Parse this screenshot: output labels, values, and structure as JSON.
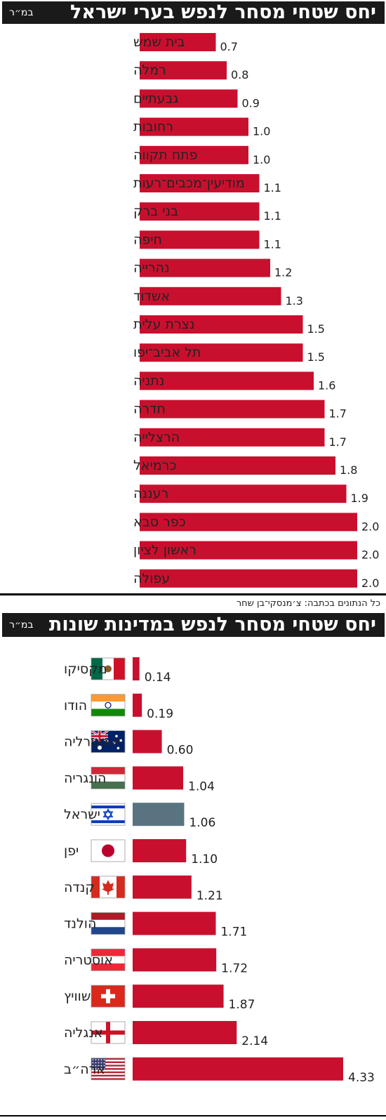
{
  "chart_data": [
    {
      "type": "bar",
      "orientation": "horizontal",
      "title": "יחס שטחי מסחר לנפש בערי ישראל",
      "unit_label": "במ״ר",
      "categories": [
        "בית שמש",
        "רמלה",
        "גבעתיים",
        "רחובות",
        "פתח תקווה",
        "מודיעין־מכבים־רעות",
        "בני ברק",
        "חיפה",
        "נהרייה",
        "אשדוד",
        "נצרת עלית",
        "תל אביב־יפו",
        "נתניה",
        "חדרה",
        "הרצלייה",
        "כרמיאל",
        "רעננה",
        "כפר סבא",
        "ראשון לציון",
        "עפולה"
      ],
      "values": [
        0.7,
        0.8,
        0.9,
        1.0,
        1.0,
        1.1,
        1.1,
        1.1,
        1.2,
        1.3,
        1.5,
        1.5,
        1.6,
        1.7,
        1.7,
        1.8,
        1.9,
        2.0,
        2.0,
        2.0
      ],
      "value_labels": [
        "0.7",
        "0.8",
        "0.9",
        "1.0",
        "1.0",
        "1.1",
        "1.1",
        "1.1",
        "1.2",
        "1.3",
        "1.5",
        "1.5",
        "1.6",
        "1.7",
        "1.7",
        "1.8",
        "1.9",
        "2.0",
        "2.0",
        "2.0"
      ],
      "bar_color": "#c8102e",
      "xlim": [
        0,
        2.0
      ]
    },
    {
      "type": "bar",
      "orientation": "horizontal",
      "title": "יחס שטחי מסחר לנפש במדינות שונות",
      "unit_label": "במ״ר",
      "categories": [
        "מקסיקו",
        "הודו",
        "אוסטרליה",
        "הונגריה",
        "ישראל",
        "יפן",
        "קנדה",
        "הולנד",
        "אוסטריה",
        "שוויץ",
        "אנגליה",
        "ארה״ב"
      ],
      "flags": [
        "mexico-flag",
        "india-flag",
        "australia-flag",
        "hungary-flag",
        "israel-flag",
        "japan-flag",
        "canada-flag",
        "netherlands-flag",
        "austria-flag",
        "switzerland-flag",
        "england-flag",
        "usa-flag"
      ],
      "values": [
        0.14,
        0.19,
        0.6,
        1.04,
        1.06,
        1.1,
        1.21,
        1.71,
        1.72,
        1.87,
        2.14,
        4.33
      ],
      "value_labels": [
        "0.14",
        "0.19",
        "0.60",
        "1.04",
        "1.06",
        "1.10",
        "1.21",
        "1.71",
        "1.72",
        "1.87",
        "2.14",
        "4.33"
      ],
      "bar_color": "#c8102e",
      "highlight_color": "#5a7380",
      "highlight_index": 4,
      "xlim": [
        0,
        4.33
      ]
    }
  ],
  "source_note": "כל הנתונים בכתבה: צ׳מנסקי־בן שחר"
}
